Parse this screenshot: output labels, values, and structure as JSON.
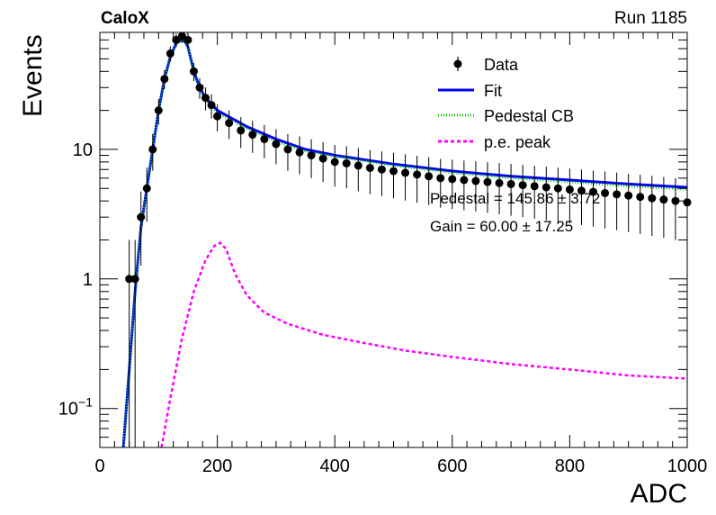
{
  "header": {
    "experiment": "CaloX",
    "run": "Run 1185"
  },
  "annotations": {
    "pedestal": "Pedestal = 145.86 ± 3.72",
    "gain": "Gain = 60.00 ± 17.25"
  },
  "legend": {
    "placement": "top-right",
    "entries": [
      {
        "label": "Data",
        "style": "marker-errorbar",
        "color": "#000000"
      },
      {
        "label": "Fit",
        "style": "solid",
        "color": "#0000ff"
      },
      {
        "label": "Pedestal CB",
        "style": "dotted",
        "color": "#00cc00"
      },
      {
        "label": "p.e. peak",
        "style": "dashed",
        "color": "#ff00ff"
      }
    ]
  },
  "chart_data": {
    "type": "scatter",
    "xlabel": "ADC",
    "ylabel": "Events",
    "xlim": [
      0,
      1000
    ],
    "ylim": [
      0.05,
      80
    ],
    "yscale": "log",
    "grid": false,
    "x_ticks": [
      "0",
      "200",
      "400",
      "600",
      "800",
      "1000"
    ],
    "y_ticks": [
      {
        "value": 0.1,
        "base": "10",
        "exp": "−1"
      },
      {
        "value": 1,
        "label": "1"
      },
      {
        "value": 10,
        "label": "10"
      }
    ],
    "series": [
      {
        "name": "Data",
        "kind": "points",
        "color": "#000000",
        "x": [
          50,
          60,
          70,
          80,
          90,
          100,
          110,
          120,
          130,
          140,
          150,
          160,
          170,
          180,
          190,
          200,
          220,
          240,
          260,
          280,
          300,
          320,
          340,
          360,
          380,
          400,
          420,
          440,
          460,
          480,
          500,
          520,
          540,
          560,
          580,
          600,
          620,
          640,
          660,
          680,
          700,
          720,
          740,
          760,
          780,
          800,
          820,
          840,
          860,
          880,
          900,
          920,
          940,
          960,
          980,
          1000
        ],
        "y": [
          1,
          1,
          3,
          5,
          10,
          20,
          35,
          55,
          70,
          75,
          70,
          40,
          30,
          25,
          22,
          18,
          16,
          14,
          13,
          12,
          11,
          10,
          9.5,
          9,
          8.5,
          8,
          7.8,
          7.5,
          7.2,
          7,
          6.8,
          6.6,
          6.4,
          6.2,
          6,
          5.9,
          5.8,
          5.7,
          5.6,
          5.5,
          5.4,
          5.3,
          5.2,
          5.1,
          5,
          4.9,
          4.8,
          4.7,
          4.6,
          4.5,
          4.4,
          4.3,
          4.2,
          4.1,
          4,
          3.9
        ]
      },
      {
        "name": "Fit",
        "kind": "line",
        "color": "#0000ff",
        "x": [
          40,
          50,
          60,
          70,
          80,
          90,
          100,
          110,
          120,
          130,
          140,
          145,
          150,
          160,
          170,
          180,
          200,
          250,
          300,
          350,
          400,
          500,
          600,
          700,
          800,
          900,
          1000
        ],
        "y": [
          0.05,
          0.2,
          0.8,
          2.5,
          5,
          10,
          20,
          35,
          52,
          66,
          70,
          68,
          62,
          40,
          30,
          25,
          20,
          15,
          12,
          10,
          9,
          7.7,
          6.8,
          6.2,
          5.8,
          5.4,
          5.1
        ]
      },
      {
        "name": "Pedestal CB",
        "kind": "line",
        "color": "#00cc00",
        "x": [
          40,
          50,
          60,
          70,
          80,
          90,
          100,
          110,
          120,
          130,
          140,
          145,
          150,
          160,
          170,
          180,
          200,
          250,
          300,
          350,
          400,
          500,
          600,
          700,
          800,
          900,
          1000
        ],
        "y": [
          0.05,
          0.2,
          0.8,
          2.5,
          5,
          10,
          20,
          35,
          52,
          66,
          70,
          68,
          62,
          39,
          29,
          24,
          19,
          14.5,
          11.5,
          9.7,
          8.8,
          7.5,
          6.6,
          6,
          5.6,
          5.2,
          4.9
        ]
      },
      {
        "name": "p.e. peak",
        "kind": "line",
        "color": "#ff00ff",
        "x": [
          105,
          120,
          140,
          160,
          180,
          195,
          205,
          215,
          230,
          250,
          280,
          320,
          380,
          450,
          520,
          600,
          700,
          800,
          900,
          1000
        ],
        "y": [
          0.05,
          0.12,
          0.35,
          0.8,
          1.4,
          1.8,
          1.9,
          1.7,
          1.1,
          0.75,
          0.55,
          0.45,
          0.37,
          0.32,
          0.28,
          0.25,
          0.22,
          0.2,
          0.18,
          0.17
        ]
      }
    ]
  }
}
